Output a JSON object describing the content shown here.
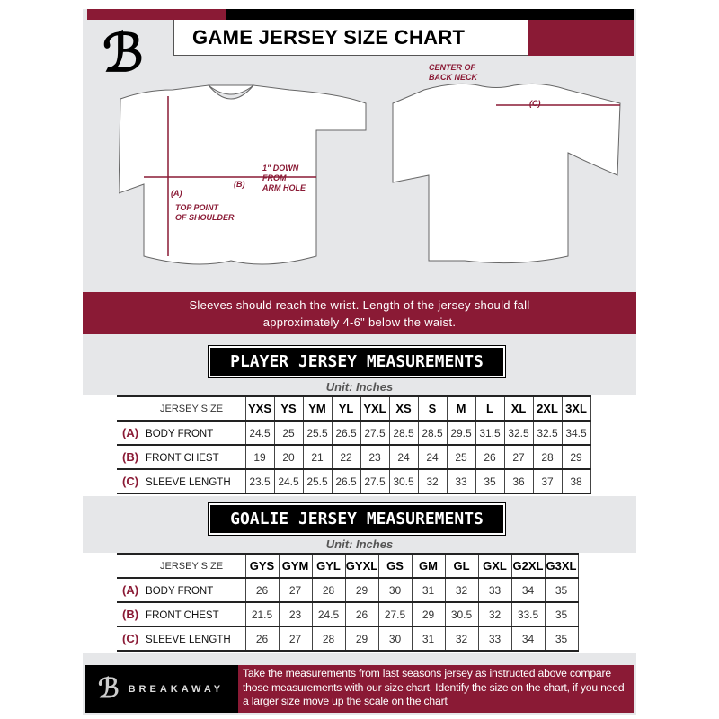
{
  "header": {
    "title": "GAME JERSEY SIZE CHART",
    "logo_text": "B"
  },
  "diagram": {
    "front_labels": {
      "a": "(A)",
      "a_desc": "TOP POINT\nOF SHOULDER",
      "b": "(B)",
      "b_desc": "1\" DOWN\nFROM\nARM HOLE"
    },
    "back_labels": {
      "c": "(C)",
      "c_desc": "CENTER OF\nBACK NECK"
    }
  },
  "banner": "Sleeves should reach the wrist. Length of the jersey should fall approximately 4-6\" below the waist.",
  "player": {
    "heading": "PLAYER JERSEY MEASUREMENTS",
    "unit": "Unit: Inches",
    "size_label": "JERSEY SIZE",
    "sizes": [
      "YXS",
      "YS",
      "YM",
      "YL",
      "YXL",
      "XS",
      "S",
      "M",
      "L",
      "XL",
      "2XL",
      "3XL"
    ],
    "rows": [
      {
        "code": "(A)",
        "label": "BODY FRONT",
        "values": [
          "24.5",
          "25",
          "25.5",
          "26.5",
          "27.5",
          "28.5",
          "28.5",
          "29.5",
          "31.5",
          "32.5",
          "32.5",
          "34.5"
        ]
      },
      {
        "code": "(B)",
        "label": "FRONT CHEST",
        "values": [
          "19",
          "20",
          "21",
          "22",
          "23",
          "24",
          "24",
          "25",
          "26",
          "27",
          "28",
          "29"
        ]
      },
      {
        "code": "(C)",
        "label": "SLEEVE LENGTH",
        "values": [
          "23.5",
          "24.5",
          "25.5",
          "26.5",
          "27.5",
          "30.5",
          "32",
          "33",
          "35",
          "36",
          "37",
          "38"
        ]
      }
    ]
  },
  "goalie": {
    "heading": "GOALIE JERSEY MEASUREMENTS",
    "unit": "Unit: Inches",
    "size_label": "JERSEY SIZE",
    "sizes": [
      "GYS",
      "GYM",
      "GYL",
      "GYXL",
      "GS",
      "GM",
      "GL",
      "GXL",
      "G2XL",
      "G3XL"
    ],
    "rows": [
      {
        "code": "(A)",
        "label": "BODY FRONT",
        "values": [
          "26",
          "27",
          "28",
          "29",
          "30",
          "31",
          "32",
          "33",
          "34",
          "35"
        ]
      },
      {
        "code": "(B)",
        "label": "FRONT CHEST",
        "values": [
          "21.5",
          "23",
          "24.5",
          "26",
          "27.5",
          "29",
          "30.5",
          "32",
          "33.5",
          "35"
        ]
      },
      {
        "code": "(C)",
        "label": "SLEEVE LENGTH",
        "values": [
          "26",
          "27",
          "28",
          "29",
          "30",
          "31",
          "32",
          "33",
          "34",
          "35"
        ]
      }
    ]
  },
  "footer": {
    "brand": "BREAKAWAY",
    "text": "Take the measurements from last seasons jersey as instructed above compare those measurements  with our size chart. Identify the size on the chart, if you need a larger size move up the scale on the chart"
  },
  "colors": {
    "accent": "#8a1a35",
    "background": "#e6e7e9"
  }
}
